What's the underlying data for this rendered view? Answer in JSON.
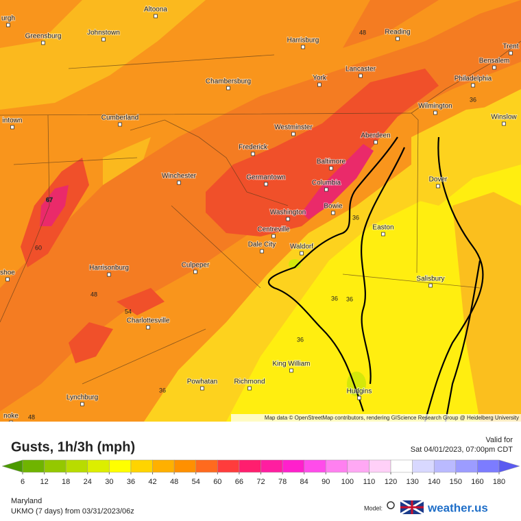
{
  "map": {
    "cities": [
      "Altoona",
      "urgh",
      "Greensburg",
      "Johnstown",
      "Harrisburg",
      "Reading",
      "Trent",
      "Bensalem",
      "Lancaster",
      "York",
      "Chambersburg",
      "Philadelphia",
      "Wilmington",
      "Winslow",
      "Cumberland",
      "intown",
      "Westminster",
      "Aberdeen",
      "Frederick",
      "Baltimore",
      "Winchester",
      "Germantown",
      "Columbia",
      "Dover",
      "Bowie",
      "Washington",
      "Easton",
      "Centreville",
      "Dale City",
      "Waldorf",
      "Harrisonburg",
      "Culpeper",
      "Salisbury",
      "shoe",
      "Charlottesville",
      "King William",
      "Powhatan",
      "Richmond",
      "Lynchburg",
      "Hudgins",
      "noke"
    ],
    "contour_labels": [
      48,
      36,
      67,
      60,
      48,
      54,
      36,
      36,
      36,
      36,
      36,
      48
    ],
    "attribution": "Map data © OpenStreetMap contributors, rendering GIScience Research Group @ Heidelberg University"
  },
  "legend": {
    "title": "Gusts, 1h/3h (mph)",
    "valid_label": "Valid for",
    "valid_time": "Sat 04/01/2023, 07:00pm CDT",
    "colorbar": {
      "ticks": [
        6,
        12,
        18,
        24,
        30,
        36,
        42,
        48,
        54,
        60,
        66,
        72,
        78,
        84,
        90,
        100,
        110,
        120,
        130,
        140,
        150,
        160,
        180
      ],
      "colors": [
        "#4b9a00",
        "#6fb400",
        "#94c800",
        "#b8dc00",
        "#dcee00",
        "#ffff00",
        "#ffd400",
        "#ffb000",
        "#ff9000",
        "#ff6a1e",
        "#ff3c3c",
        "#ff1e6e",
        "#ff1ea0",
        "#ff20cc",
        "#ff4cea",
        "#ff80f0",
        "#ffa8f4",
        "#ffd0f8",
        "#ffffff",
        "#d8d8ff",
        "#babaff",
        "#9c9cff",
        "#7c7cff",
        "#5a5af0"
      ]
    },
    "region": "Maryland",
    "model_run": "UKMO (7 days) from 03/31/2023/06z",
    "model_label": "Model:",
    "brand": "weather.us"
  }
}
